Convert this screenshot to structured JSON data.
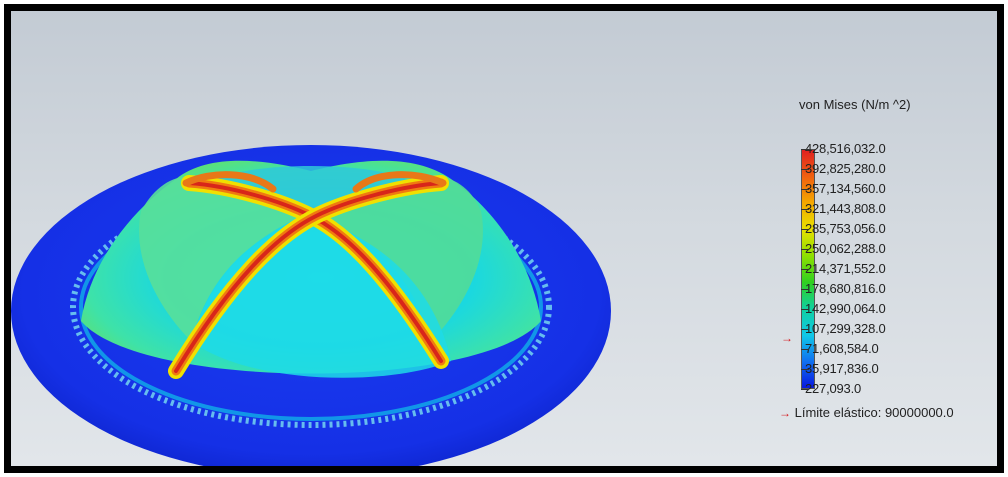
{
  "legend": {
    "title": "von Mises (N/m ^2)",
    "labels": [
      "428,516,032.0",
      "392,825,280.0",
      "357,134,560.0",
      "321,443,808.0",
      "285,753,056.0",
      "250,062,288.0",
      "214,371,552.0",
      "178,680,816.0",
      "142,990,064.0",
      "107,299,328.0",
      "71,608,584.0",
      "35,917,836.0",
      "227,093.0"
    ],
    "yield_label": "Límite elástico: 90000000.0",
    "yield_value_fraction": 0.21,
    "colormap": [
      "#e02020",
      "#f06010",
      "#f5a800",
      "#e8e000",
      "#8ee000",
      "#30d020",
      "#10d0a0",
      "#10c8e8",
      "#1070f0",
      "#0818e0"
    ]
  },
  "colors": {
    "flange": "#1530e6",
    "dome_base": "#18d6e8",
    "dome_mid": "#2ee08a",
    "stress_band": "#e94a12",
    "background_top": "#c3cbd4",
    "background_bottom": "#e2e6ea"
  }
}
